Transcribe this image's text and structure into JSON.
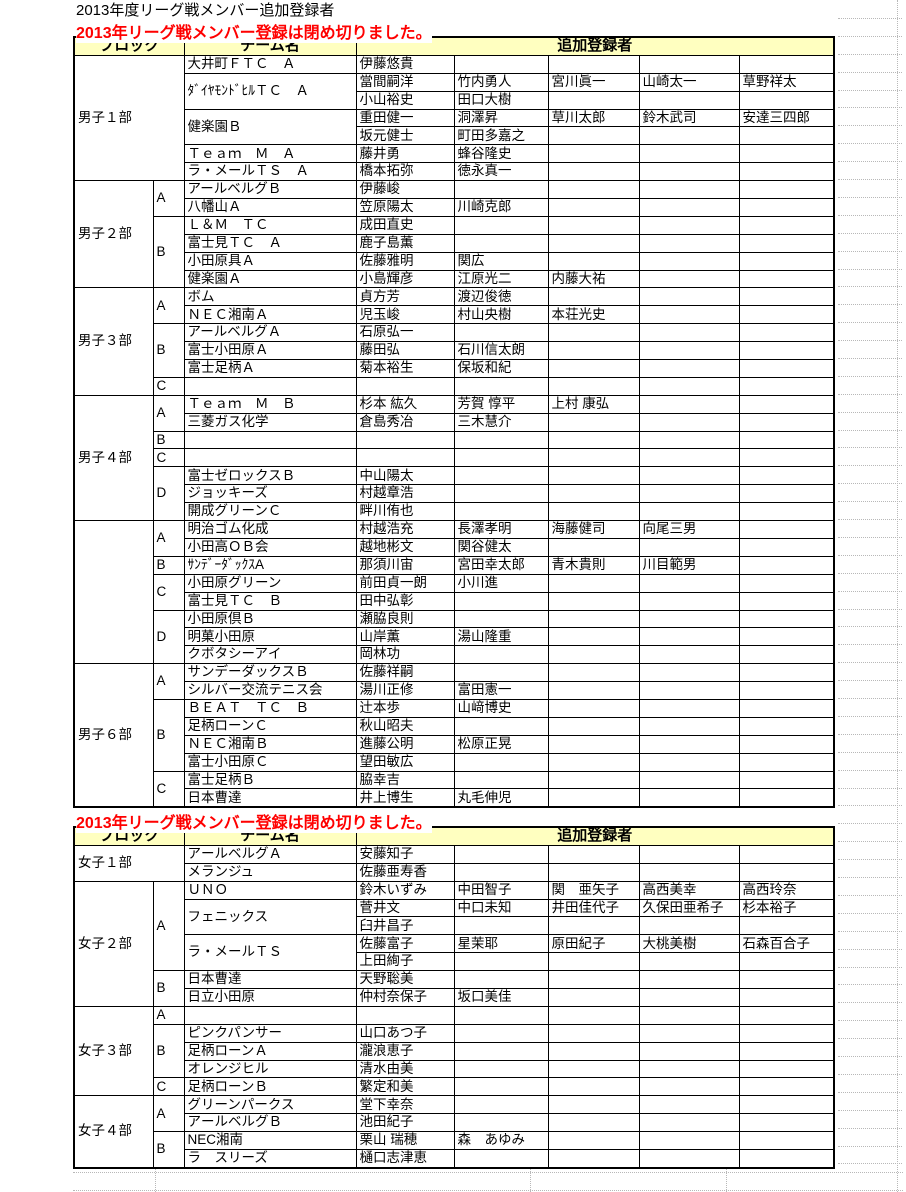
{
  "page": {
    "title": "2013年度リーグ戦メンバー追加登録者",
    "closed_notice": "2013年リーグ戦メンバー登録は閉め切りました。",
    "colors": {
      "header_bg": "#FFFFC0",
      "notice_red": "#FF0000",
      "grid_line": "#B8B8B8",
      "border": "#000000"
    }
  },
  "column_headers": {
    "block": "ブロック",
    "team": "チーム名",
    "registrants": "追加登録者"
  },
  "men_table": {
    "sections": [
      {
        "division": "男子１部",
        "division_colspan": 2,
        "blocks": [
          {
            "letter": null,
            "teams": [
              {
                "name": "大井町ＦＴＣ　Ａ",
                "rows": [
                  [
                    "伊藤悠貴"
                  ]
                ]
              },
              {
                "name": "ﾀﾞｲﾔﾓﾝﾄﾞﾋﾙＴＣ　Ａ",
                "rows": [
                  [
                    "當間嗣洋",
                    "竹内勇人",
                    "宮川眞一",
                    "山崎太一",
                    "草野祥太"
                  ],
                  [
                    "小山裕史",
                    "田口大樹"
                  ]
                ]
              },
              {
                "name": "健楽園Ｂ",
                "rows": [
                  [
                    "重田健一",
                    "洞澤昇",
                    "草川太郎",
                    "鈴木武司",
                    "安達三四郎"
                  ],
                  [
                    "坂元健士",
                    "町田多嘉之"
                  ]
                ]
              },
              {
                "name": "Ｔｅａｍ　Ｍ　Ａ",
                "rows": [
                  [
                    "藤井勇",
                    "蜂谷隆史"
                  ]
                ]
              },
              {
                "name": "ラ・メールＴＳ　Ａ",
                "rows": [
                  [
                    "橋本拓弥",
                    "徳永真一"
                  ]
                ]
              }
            ]
          }
        ]
      },
      {
        "division": "男子２部",
        "division_colspan": 1,
        "blocks": [
          {
            "letter": "A",
            "teams": [
              {
                "name": "アールベルグＢ",
                "rows": [
                  [
                    "伊藤峻"
                  ]
                ]
              },
              {
                "name": "八幡山Ａ",
                "rows": [
                  [
                    "笠原陽太",
                    "川崎克郎"
                  ]
                ]
              }
            ]
          },
          {
            "letter": "B",
            "teams": [
              {
                "name": "Ｌ＆Ｍ　ＴＣ",
                "rows": [
                  [
                    "成田直史"
                  ]
                ]
              },
              {
                "name": "富士見ＴＣ　Ａ",
                "rows": [
                  [
                    "鹿子島薫"
                  ]
                ]
              },
              {
                "name": "小田原具Ａ",
                "rows": [
                  [
                    "佐藤雅明",
                    "関広"
                  ]
                ]
              },
              {
                "name": "健楽園Ａ",
                "rows": [
                  [
                    "小島輝彦",
                    "江原光二",
                    "内藤大祐"
                  ]
                ]
              }
            ]
          }
        ]
      },
      {
        "division": "男子３部",
        "division_colspan": 1,
        "blocks": [
          {
            "letter": "A",
            "teams": [
              {
                "name": "ボム",
                "rows": [
                  [
                    "貞方芳",
                    "渡辺俊徳"
                  ]
                ]
              },
              {
                "name": "ＮＥＣ湘南Ａ",
                "rows": [
                  [
                    "児玉峻",
                    "村山央樹",
                    "本荘光史"
                  ]
                ]
              }
            ]
          },
          {
            "letter": "B",
            "teams": [
              {
                "name": "アールベルグＡ",
                "rows": [
                  [
                    "石原弘一"
                  ]
                ]
              },
              {
                "name": "富士小田原Ａ",
                "rows": [
                  [
                    "藤田弘",
                    "石川信太朗"
                  ]
                ]
              },
              {
                "name": "富士足柄Ａ",
                "rows": [
                  [
                    "菊本裕生",
                    "保坂和紀"
                  ]
                ]
              }
            ]
          },
          {
            "letter": "C",
            "teams": [
              {
                "name": "",
                "rows": [
                  []
                ]
              }
            ]
          }
        ]
      },
      {
        "division": "男子４部",
        "division_colspan": 1,
        "blocks": [
          {
            "letter": "A",
            "teams": [
              {
                "name": "Ｔｅａｍ　Ｍ　Ｂ",
                "rows": [
                  [
                    "杉本 紘久",
                    "芳賀 惇平",
                    "上村 康弘"
                  ]
                ]
              },
              {
                "name": "三菱ガス化学",
                "rows": [
                  [
                    "倉島秀冶",
                    "三木慧介"
                  ]
                ]
              }
            ]
          },
          {
            "letter": "B",
            "teams": [
              {
                "name": "",
                "rows": [
                  []
                ]
              }
            ]
          },
          {
            "letter": "C",
            "teams": [
              {
                "name": "",
                "rows": [
                  []
                ]
              }
            ]
          },
          {
            "letter": "D",
            "teams": [
              {
                "name": "富士ゼロックスＢ",
                "rows": [
                  [
                    "中山陽太"
                  ]
                ]
              },
              {
                "name": "ジョッキーズ",
                "rows": [
                  [
                    "村越章浩"
                  ]
                ]
              },
              {
                "name": "開成グリーンＣ",
                "rows": [
                  [
                    "畔川侑也"
                  ]
                ]
              }
            ]
          }
        ]
      },
      {
        "division": "",
        "division_colspan": 1,
        "blocks": [
          {
            "letter": "A",
            "teams": [
              {
                "name": "明治ゴム化成",
                "rows": [
                  [
                    "村越浩充",
                    "長澤孝明",
                    "海藤健司",
                    "向尾三男"
                  ]
                ]
              },
              {
                "name": "小田高ＯＢ会",
                "rows": [
                  [
                    "越地彬文",
                    "関谷健太"
                  ]
                ]
              }
            ]
          },
          {
            "letter": "B",
            "teams": [
              {
                "name": "ｻﾝﾃﾞｰﾀﾞｯｸｽA",
                "rows": [
                  [
                    "那須川宙",
                    "宮田幸太郎",
                    "青木貴則",
                    "川目範男"
                  ]
                ]
              }
            ]
          },
          {
            "letter": "C",
            "teams": [
              {
                "name": "小田原グリーン",
                "rows": [
                  [
                    "前田貞一朗",
                    "小川進"
                  ]
                ]
              },
              {
                "name": "富士見ＴＣ　Ｂ",
                "rows": [
                  [
                    "田中弘彰"
                  ]
                ]
              }
            ]
          },
          {
            "letter": "D",
            "teams": [
              {
                "name": "小田原倶Ｂ",
                "rows": [
                  [
                    "瀬脇良則"
                  ]
                ]
              },
              {
                "name": "明菓小田原",
                "rows": [
                  [
                    "山岸薫",
                    "湯山隆重"
                  ]
                ]
              },
              {
                "name": "クボタシーアイ",
                "rows": [
                  [
                    "岡林功"
                  ]
                ]
              }
            ]
          }
        ]
      },
      {
        "division": "男子６部",
        "division_colspan": 1,
        "blocks": [
          {
            "letter": "A",
            "teams": [
              {
                "name": "サンデーダックスＢ",
                "rows": [
                  [
                    "佐藤祥嗣"
                  ]
                ]
              },
              {
                "name": "シルバー交流テニス会",
                "rows": [
                  [
                    "湯川正修",
                    "富田憲一"
                  ]
                ]
              }
            ]
          },
          {
            "letter": "B",
            "teams": [
              {
                "name": "ＢＥＡＴ　ＴＣ　Ｂ",
                "rows": [
                  [
                    "辻本歩",
                    "山﨑博史"
                  ]
                ]
              },
              {
                "name": "足柄ローンＣ",
                "rows": [
                  [
                    "秋山昭夫"
                  ]
                ]
              },
              {
                "name": "ＮＥＣ湘南Ｂ",
                "rows": [
                  [
                    "進藤公明",
                    "松原正晃"
                  ]
                ]
              },
              {
                "name": "富士小田原Ｃ",
                "rows": [
                  [
                    "望田敏広"
                  ]
                ]
              }
            ]
          },
          {
            "letter": "C",
            "teams": [
              {
                "name": "富士足柄Ｂ",
                "rows": [
                  [
                    "脇幸吉"
                  ]
                ]
              },
              {
                "name": "日本曹達",
                "rows": [
                  [
                    "井上博生",
                    "丸毛伸児"
                  ]
                ]
              }
            ]
          }
        ]
      }
    ]
  },
  "women_table": {
    "sections": [
      {
        "division": "女子１部",
        "division_colspan": 2,
        "blocks": [
          {
            "letter": null,
            "teams": [
              {
                "name": "アールベルグＡ",
                "rows": [
                  [
                    "安藤知子"
                  ]
                ]
              },
              {
                "name": "メランジュ",
                "rows": [
                  [
                    "佐藤亜寿香"
                  ]
                ]
              }
            ]
          }
        ]
      },
      {
        "division": "女子２部",
        "division_colspan": 1,
        "blocks": [
          {
            "letter": "A",
            "teams": [
              {
                "name": "ＵＮＯ",
                "rows": [
                  [
                    "鈴木いずみ",
                    "中田智子",
                    "関　亜矢子",
                    "高西美幸",
                    "高西玲奈"
                  ]
                ]
              },
              {
                "name": "フェニックス",
                "rows": [
                  [
                    "菅井文",
                    "中口未知",
                    "井田佳代子",
                    "久保田亜希子",
                    "杉本裕子"
                  ],
                  [
                    "臼井昌子"
                  ]
                ]
              },
              {
                "name": "ラ・メールＴＳ",
                "rows": [
                  [
                    "佐藤富子",
                    "星茉耶",
                    "原田紀子",
                    "大桃美樹",
                    "石森百合子"
                  ],
                  [
                    "上田絢子"
                  ]
                ]
              }
            ]
          },
          {
            "letter": "B",
            "teams": [
              {
                "name": "日本曹達",
                "rows": [
                  [
                    "天野聡美"
                  ]
                ]
              },
              {
                "name": "日立小田原",
                "rows": [
                  [
                    "仲村奈保子",
                    "坂口美佳"
                  ]
                ]
              }
            ]
          }
        ]
      },
      {
        "division": "女子３部",
        "division_colspan": 1,
        "blocks": [
          {
            "letter": "A",
            "teams": [
              {
                "name": "",
                "rows": [
                  []
                ]
              }
            ]
          },
          {
            "letter": "B",
            "teams": [
              {
                "name": "ピンクパンサー",
                "rows": [
                  [
                    "山口あつ子"
                  ]
                ]
              },
              {
                "name": "足柄ローンＡ",
                "rows": [
                  [
                    "瀧浪恵子"
                  ]
                ]
              },
              {
                "name": "オレンジヒル",
                "rows": [
                  [
                    "清水由美"
                  ]
                ]
              }
            ]
          },
          {
            "letter": "C",
            "teams": [
              {
                "name": "足柄ローンＢ",
                "rows": [
                  [
                    "繁定和美"
                  ]
                ]
              }
            ]
          }
        ]
      },
      {
        "division": "女子４部",
        "division_colspan": 1,
        "blocks": [
          {
            "letter": "A",
            "teams": [
              {
                "name": "グリーンパークス",
                "rows": [
                  [
                    "堂下幸奈"
                  ]
                ]
              },
              {
                "name": "アールベルグＢ",
                "rows": [
                  [
                    "池田紀子"
                  ]
                ]
              }
            ]
          },
          {
            "letter": "B",
            "teams": [
              {
                "name": "NEC湘南",
                "rows": [
                  [
                    "栗山 瑞穂",
                    "森　あゆみ"
                  ]
                ]
              },
              {
                "name": "ラ　スリーズ",
                "rows": [
                  [
                    "樋口志津恵"
                  ]
                ]
              }
            ]
          }
        ]
      }
    ]
  }
}
